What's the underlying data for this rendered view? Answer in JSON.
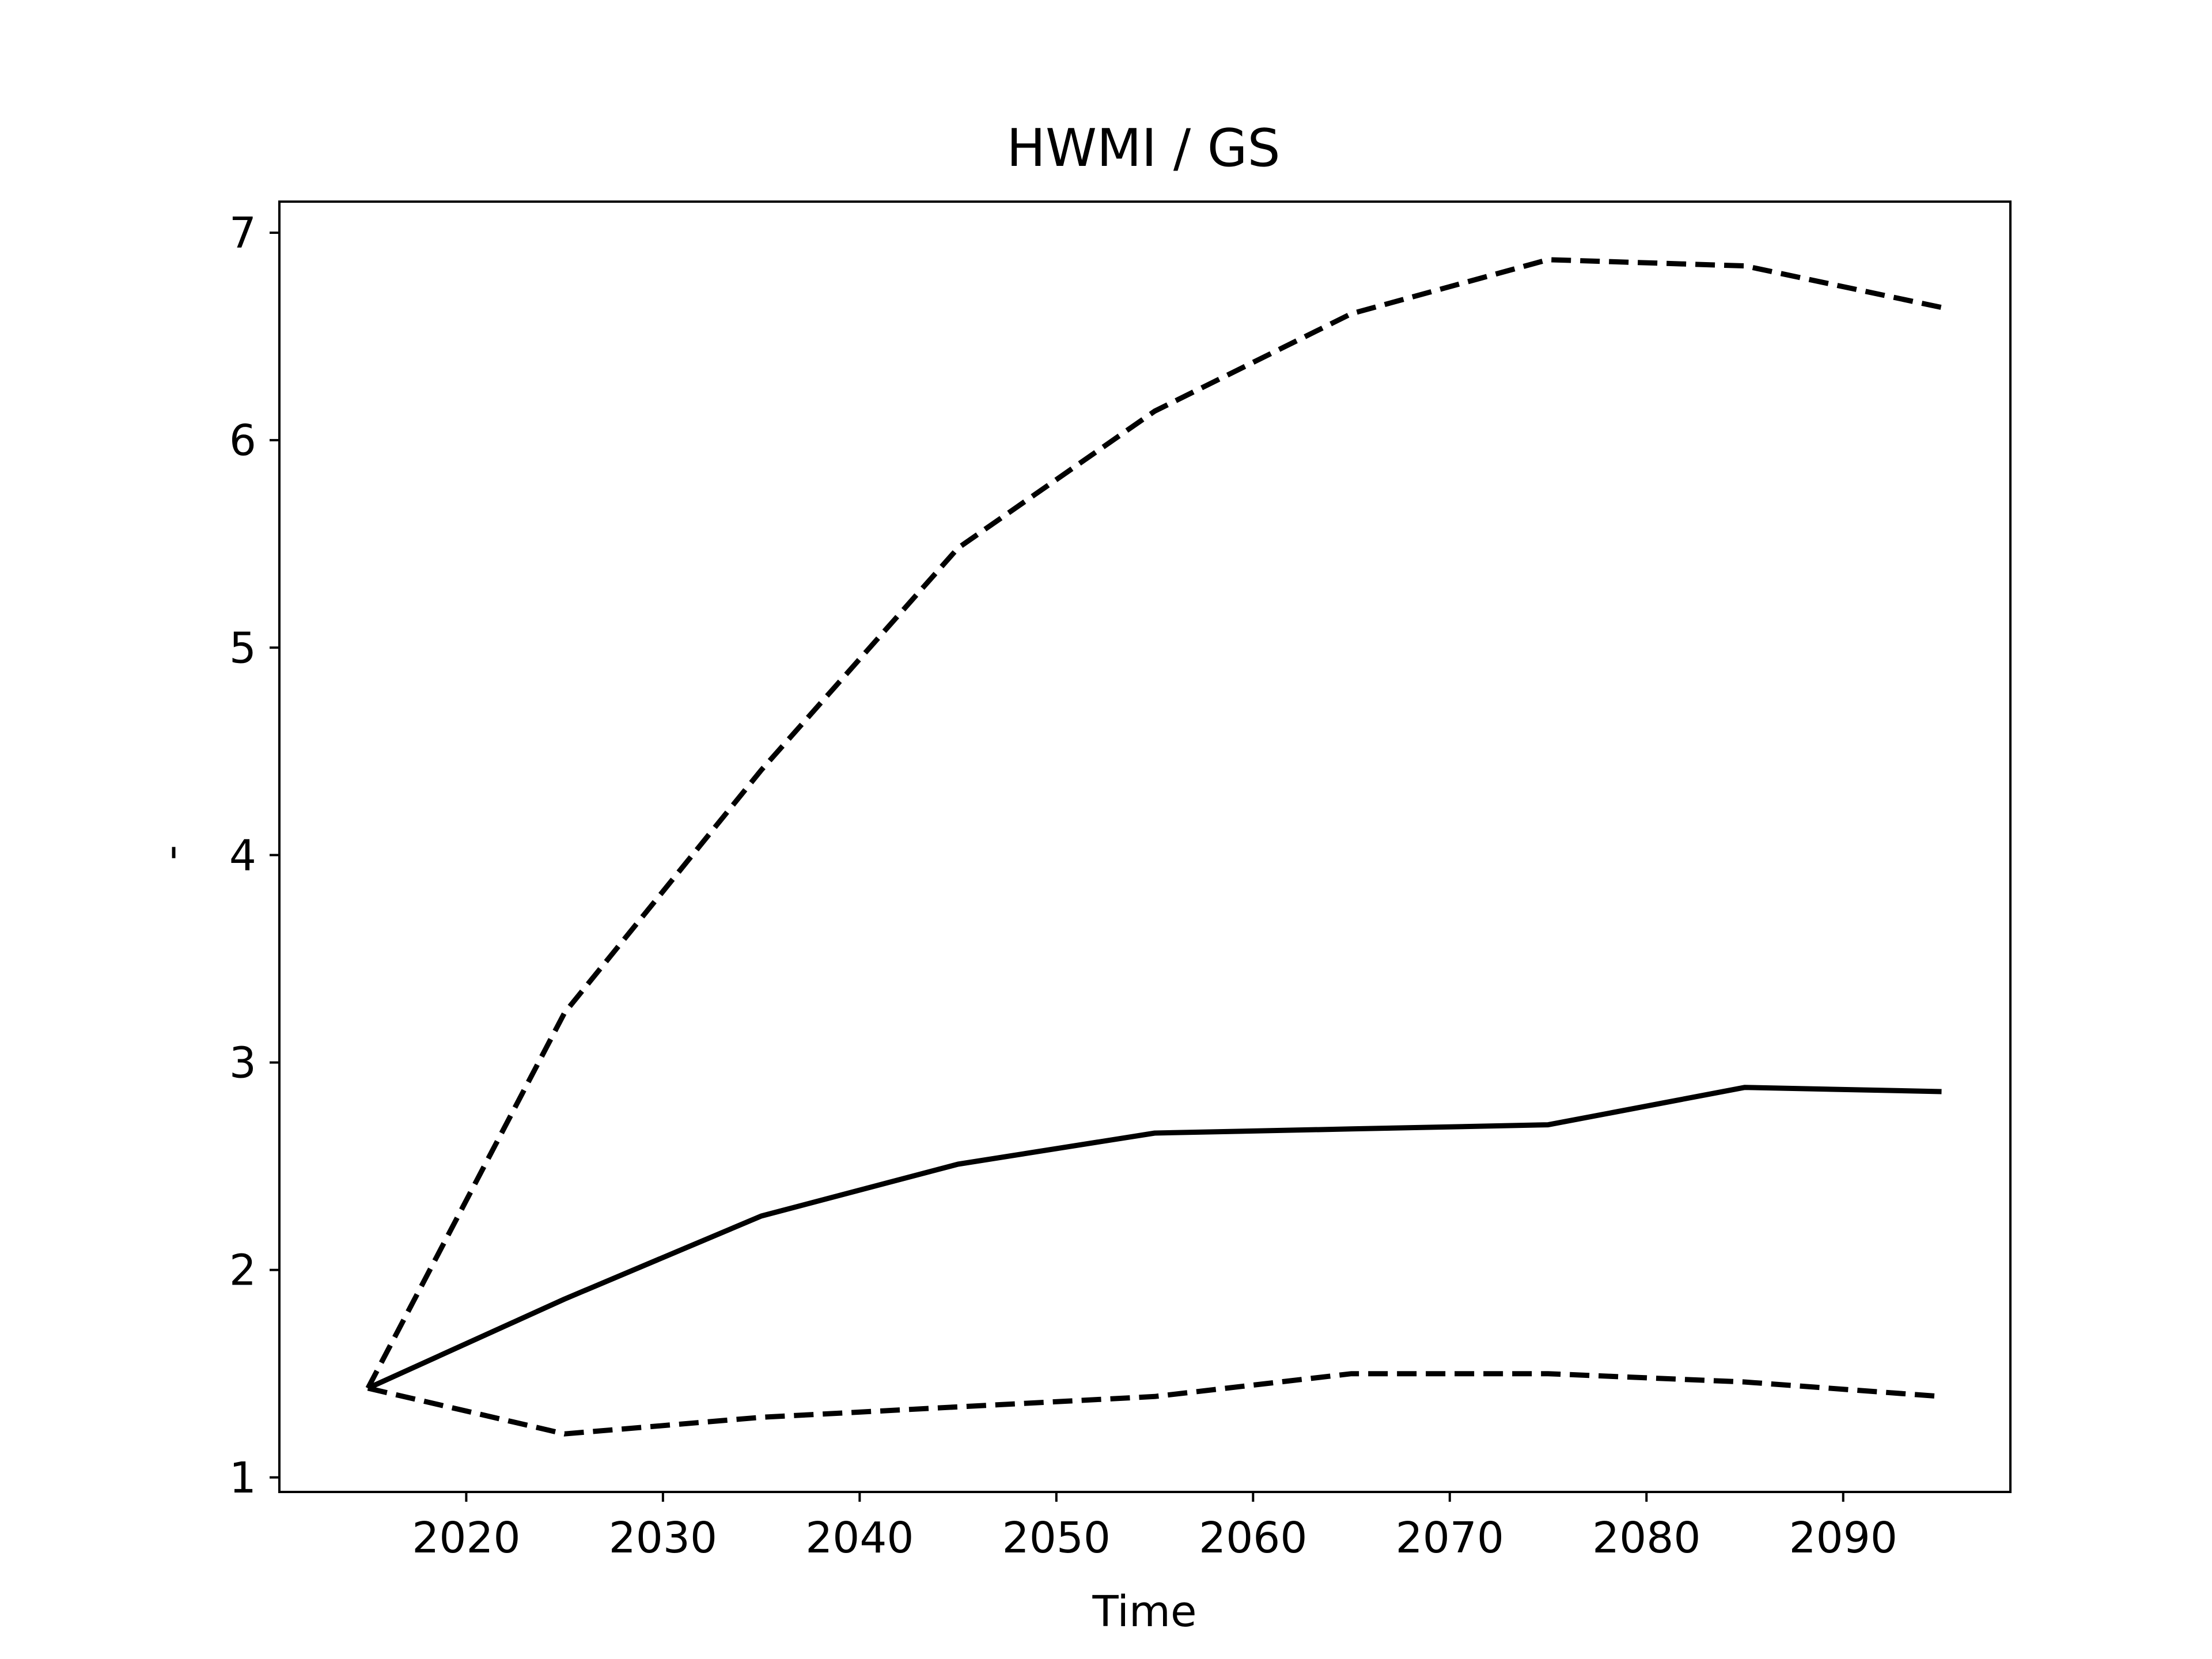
{
  "chart_data": {
    "type": "line",
    "title": "HWMI / GS",
    "xlabel": "Time",
    "ylabel": "-",
    "x": [
      2015,
      2025,
      2035,
      2045,
      2055,
      2065,
      2075,
      2085,
      2095
    ],
    "xlim": [
      2010.5,
      2098.5
    ],
    "ylim": [
      0.93,
      7.15
    ],
    "xticks": [
      2020,
      2030,
      2040,
      2050,
      2060,
      2070,
      2080,
      2090
    ],
    "yticks": [
      1,
      2,
      3,
      4,
      5,
      6,
      7
    ],
    "grid": false,
    "legend": "none",
    "series": [
      {
        "style": "solid",
        "color": "#000000",
        "values": [
          1.43,
          1.86,
          2.26,
          2.51,
          2.66,
          2.68,
          2.7,
          2.88,
          2.86
        ]
      },
      {
        "style": "dashed",
        "color": "#000000",
        "values": [
          1.43,
          3.24,
          4.41,
          5.48,
          6.14,
          6.61,
          6.87,
          6.84,
          6.64
        ]
      },
      {
        "style": "dashed",
        "color": "#000000",
        "values": [
          1.43,
          1.21,
          1.29,
          1.34,
          1.39,
          1.5,
          1.5,
          1.46,
          1.39
        ]
      }
    ]
  }
}
